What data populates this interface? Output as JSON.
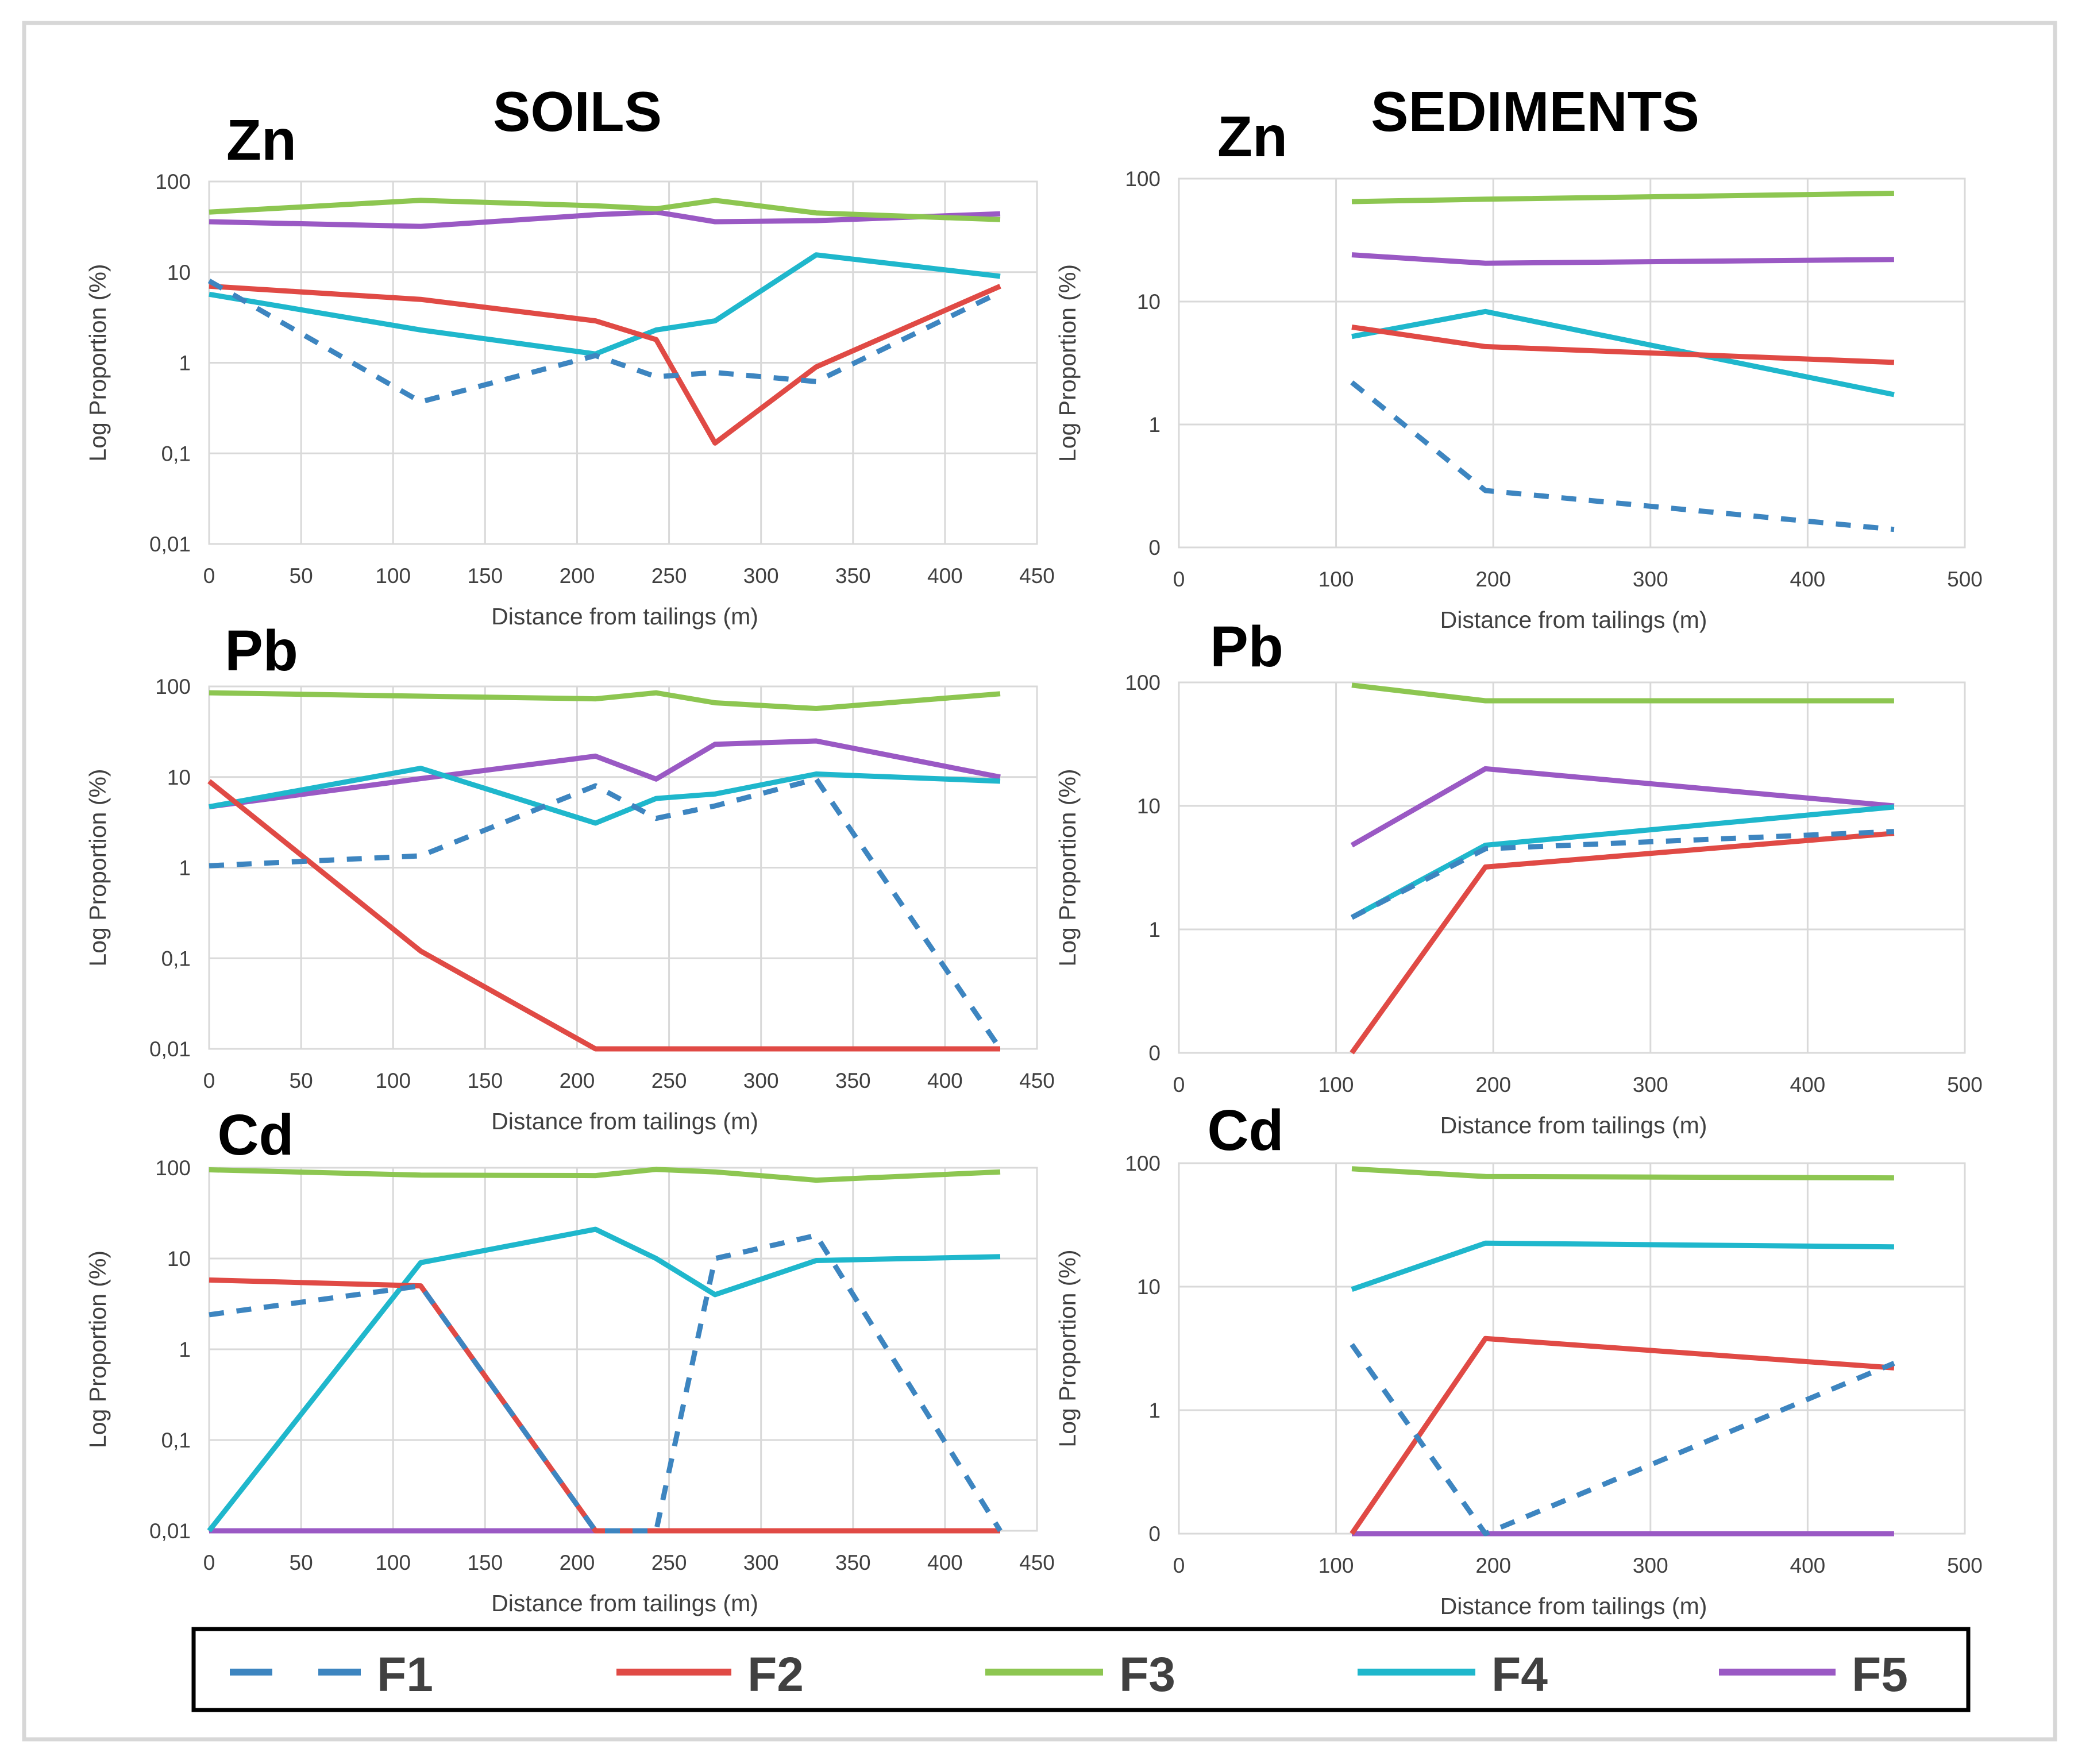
{
  "titles": {
    "soils": "SOILS",
    "sediments": "SEDIMENTS"
  },
  "colors": {
    "F1": "#3d85c0",
    "F2": "#e04a45",
    "F3": "#8dc651",
    "F4": "#1fb7cc",
    "F5": "#9a59c4"
  },
  "legend": [
    {
      "key": "F1",
      "label": "F1",
      "style": "dashed"
    },
    {
      "key": "F2",
      "label": "F2",
      "style": "solid"
    },
    {
      "key": "F3",
      "label": "F3",
      "style": "solid"
    },
    {
      "key": "F4",
      "label": "F4",
      "style": "solid"
    },
    {
      "key": "F5",
      "label": "F5",
      "style": "solid"
    }
  ],
  "chart_data": [
    {
      "id": "soils-zn",
      "type": "line",
      "title": "Zn",
      "xlabel": "Distance from tailings (m)",
      "ylabel": "Log Proportion (%)",
      "xlim": [
        0,
        450
      ],
      "xticks": [
        "0",
        "50",
        "100",
        "150",
        "200",
        "250",
        "300",
        "350",
        "400",
        "450"
      ],
      "xtick_values": [
        0,
        50,
        100,
        150,
        200,
        250,
        300,
        350,
        400,
        450
      ],
      "ylim_log": [
        0.01,
        100
      ],
      "yticks": [
        "0,01",
        "0,1",
        "1",
        "10",
        "100"
      ],
      "series": [
        {
          "name": "F1",
          "x": [
            0,
            115,
            210,
            243,
            275,
            330,
            430
          ],
          "y": [
            8,
            0.37,
            1.2,
            0.7,
            0.78,
            0.62,
            6
          ]
        },
        {
          "name": "F2",
          "x": [
            0,
            115,
            210,
            243,
            275,
            330,
            430
          ],
          "y": [
            7,
            5,
            2.9,
            1.8,
            0.13,
            0.9,
            7
          ]
        },
        {
          "name": "F3",
          "x": [
            0,
            115,
            210,
            243,
            275,
            330,
            430
          ],
          "y": [
            46,
            62,
            54,
            50,
            62,
            45,
            38
          ]
        },
        {
          "name": "F4",
          "x": [
            0,
            115,
            210,
            243,
            275,
            330,
            430
          ],
          "y": [
            5.7,
            2.3,
            1.25,
            2.3,
            2.9,
            15.5,
            9
          ]
        },
        {
          "name": "F5",
          "x": [
            0,
            115,
            210,
            243,
            275,
            330,
            430
          ],
          "y": [
            36,
            32,
            43,
            46,
            36,
            37,
            44
          ]
        }
      ]
    },
    {
      "id": "sediments-zn",
      "type": "line",
      "title": "Zn",
      "xlabel": "Distance from tailings (m)",
      "ylabel": "Log Proportion (%)",
      "xlim": [
        0,
        500
      ],
      "xticks": [
        "0",
        "100",
        "200",
        "300",
        "400",
        "500"
      ],
      "xtick_values": [
        0,
        100,
        200,
        300,
        400,
        500
      ],
      "ylim_log": [
        0.1,
        100
      ],
      "yticks": [
        "0",
        "1",
        "10",
        "100"
      ],
      "series": [
        {
          "name": "F1",
          "x": [
            110,
            195,
            455
          ],
          "y": [
            2.2,
            0.29,
            0.14
          ]
        },
        {
          "name": "F2",
          "x": [
            110,
            195,
            455
          ],
          "y": [
            6.2,
            4.3,
            3.2
          ]
        },
        {
          "name": "F3",
          "x": [
            110,
            195,
            455
          ],
          "y": [
            65,
            68,
            76
          ]
        },
        {
          "name": "F4",
          "x": [
            110,
            195,
            455
          ],
          "y": [
            5.2,
            8.3,
            1.75
          ]
        },
        {
          "name": "F5",
          "x": [
            110,
            195,
            455
          ],
          "y": [
            24,
            20.5,
            22
          ]
        }
      ]
    },
    {
      "id": "soils-pb",
      "type": "line",
      "title": "Pb",
      "xlabel": "Distance from tailings (m)",
      "ylabel": "Log Proportion (%)",
      "xlim": [
        0,
        450
      ],
      "xticks": [
        "0",
        "50",
        "100",
        "150",
        "200",
        "250",
        "300",
        "350",
        "400",
        "450"
      ],
      "xtick_values": [
        0,
        50,
        100,
        150,
        200,
        250,
        300,
        350,
        400,
        450
      ],
      "ylim_log": [
        0.01,
        100
      ],
      "yticks": [
        "0,01",
        "0,1",
        "1",
        "10",
        "100"
      ],
      "series": [
        {
          "name": "F1",
          "x": [
            0,
            115,
            210,
            243,
            275,
            330,
            430
          ],
          "y": [
            1.05,
            1.35,
            8,
            3.5,
            4.8,
            9.5,
            0.01
          ]
        },
        {
          "name": "F2",
          "x": [
            0,
            115,
            210,
            243,
            275,
            330,
            430
          ],
          "y": [
            9,
            0.12,
            0.01,
            0.01,
            0.01,
            0.01,
            0.01
          ]
        },
        {
          "name": "F3",
          "x": [
            0,
            115,
            210,
            243,
            275,
            330,
            430
          ],
          "y": [
            85,
            78,
            73,
            85,
            66,
            57,
            83
          ]
        },
        {
          "name": "F4",
          "x": [
            0,
            115,
            210,
            243,
            275,
            330,
            430
          ],
          "y": [
            4.7,
            12.5,
            3.1,
            5.8,
            6.5,
            10.8,
            9
          ]
        },
        {
          "name": "F5",
          "x": [
            0,
            115,
            210,
            243,
            275,
            330,
            430
          ],
          "y": [
            4.7,
            9.6,
            17,
            9.5,
            23,
            25,
            10
          ]
        }
      ]
    },
    {
      "id": "sediments-pb",
      "type": "line",
      "title": "Pb",
      "xlabel": "Distance from tailings (m)",
      "ylabel": "Log Proportion (%)",
      "xlim": [
        0,
        500
      ],
      "xticks": [
        "0",
        "100",
        "200",
        "300",
        "400",
        "500"
      ],
      "xtick_values": [
        0,
        100,
        200,
        300,
        400,
        500
      ],
      "ylim_log": [
        0.1,
        100
      ],
      "yticks": [
        "0",
        "1",
        "10",
        "100"
      ],
      "series": [
        {
          "name": "F1",
          "x": [
            110,
            195,
            455
          ],
          "y": [
            1.25,
            4.5,
            6.2
          ]
        },
        {
          "name": "F2",
          "x": [
            110,
            195,
            455
          ],
          "y": [
            0.1,
            3.2,
            6
          ]
        },
        {
          "name": "F3",
          "x": [
            110,
            195,
            455
          ],
          "y": [
            95,
            71,
            71
          ]
        },
        {
          "name": "F4",
          "x": [
            110,
            195,
            455
          ],
          "y": [
            1.25,
            4.8,
            9.8
          ]
        },
        {
          "name": "F5",
          "x": [
            110,
            195,
            455
          ],
          "y": [
            4.8,
            20,
            10
          ]
        }
      ]
    },
    {
      "id": "soils-cd",
      "type": "line",
      "title": "Cd",
      "xlabel": "Distance from tailings (m)",
      "ylabel": "Log Proportion (%)",
      "xlim": [
        0,
        450
      ],
      "xticks": [
        "0",
        "50",
        "100",
        "150",
        "200",
        "250",
        "300",
        "350",
        "400",
        "450"
      ],
      "xtick_values": [
        0,
        50,
        100,
        150,
        200,
        250,
        300,
        350,
        400,
        450
      ],
      "ylim_log": [
        0.01,
        100
      ],
      "yticks": [
        "0,01",
        "0,1",
        "1",
        "10",
        "100"
      ],
      "series": [
        {
          "name": "F1",
          "x": [
            0,
            115,
            210,
            243,
            275,
            330,
            430
          ],
          "y": [
            2.4,
            5,
            0.01,
            0.01,
            10,
            18,
            0.01
          ]
        },
        {
          "name": "F2",
          "x": [
            0,
            115,
            210,
            243,
            275,
            330,
            430
          ],
          "y": [
            5.8,
            5,
            0.01,
            0.01,
            0.01,
            0.01,
            0.01
          ]
        },
        {
          "name": "F3",
          "x": [
            0,
            115,
            210,
            243,
            275,
            330,
            430
          ],
          "y": [
            95,
            83,
            82,
            96,
            90,
            73,
            90
          ]
        },
        {
          "name": "F4",
          "x": [
            0,
            115,
            210,
            243,
            275,
            330,
            430
          ],
          "y": [
            0.01,
            9,
            21,
            10,
            4,
            9.5,
            10.5
          ]
        },
        {
          "name": "F5",
          "x": [
            0,
            115,
            210,
            243,
            275,
            330,
            430
          ],
          "y": [
            0.01,
            0.01,
            0.01,
            0.01,
            0.01,
            0.01,
            0.01
          ]
        }
      ]
    },
    {
      "id": "sediments-cd",
      "type": "line",
      "title": "Cd",
      "xlabel": "Distance from tailings (m)",
      "ylabel": "Log Proportion (%)",
      "xlim": [
        0,
        500
      ],
      "xticks": [
        "0",
        "100",
        "200",
        "300",
        "400",
        "500"
      ],
      "xtick_values": [
        0,
        100,
        200,
        300,
        400,
        500
      ],
      "ylim_log": [
        0.1,
        100
      ],
      "yticks": [
        "0",
        "1",
        "10",
        "100"
      ],
      "series": [
        {
          "name": "F1",
          "x": [
            110,
            195,
            455
          ],
          "y": [
            3.4,
            0.1,
            2.4
          ]
        },
        {
          "name": "F2",
          "x": [
            110,
            195,
            455
          ],
          "y": [
            0.1,
            3.8,
            2.2
          ]
        },
        {
          "name": "F3",
          "x": [
            110,
            195,
            455
          ],
          "y": [
            90,
            78,
            76
          ]
        },
        {
          "name": "F4",
          "x": [
            110,
            195,
            455
          ],
          "y": [
            9.5,
            22.5,
            21
          ]
        },
        {
          "name": "F5",
          "x": [
            110,
            195,
            455
          ],
          "y": [
            0.1,
            0.1,
            0.1
          ]
        }
      ]
    }
  ]
}
